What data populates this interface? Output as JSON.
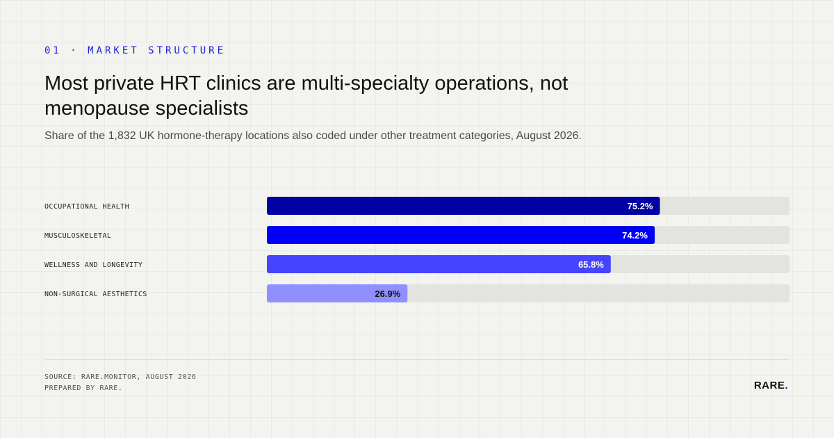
{
  "header": {
    "kicker": "01 · MARKET STRUCTURE",
    "title": "Most private HRT clinics are multi-specialty operations, not menopause specialists",
    "subtitle": "Share of the 1,832 UK hormone-therapy locations also coded under other treatment categories, August 2026."
  },
  "chart_data": {
    "type": "bar",
    "orientation": "horizontal",
    "categories": [
      "OCCUPATIONAL HEALTH",
      "MUSCULOSKELETAL",
      "WELLNESS AND LONGEVITY",
      "NON-SURGICAL AESTHETICS"
    ],
    "values": [
      75.2,
      74.2,
      65.8,
      26.9
    ],
    "value_labels": [
      "75.2%",
      "74.2%",
      "65.8%",
      "26.9%"
    ],
    "unit": "%",
    "xlim": [
      0,
      100
    ],
    "grid": false,
    "colors": [
      "#0000a3",
      "#0000f5",
      "#4545ff",
      "#8f8fff"
    ],
    "label_colors": [
      "#ffffff",
      "#ffffff",
      "#ffffff",
      "#111111"
    ],
    "track_color": "#e3e3df"
  },
  "footer": {
    "source_line1": "SOURCE: RARE.MONITOR, AUGUST 2026",
    "source_line2": "PREPARED BY RARE.",
    "brand_text": "RARE",
    "brand_dot": "."
  }
}
